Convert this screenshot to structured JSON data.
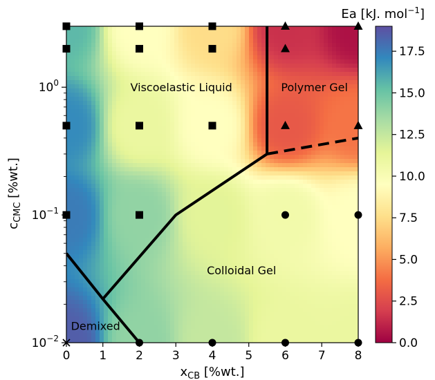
{
  "chart_data": {
    "type": "heatmap",
    "title": "",
    "xlabel": {
      "main": "x",
      "sub": "CB",
      "unit": " [%wt.]"
    },
    "ylabel": {
      "main": "c",
      "sub": "CMC",
      "unit": " [%wt.]"
    },
    "xlim": [
      0,
      8
    ],
    "ylim": [
      0.01,
      3
    ],
    "yscale": "log",
    "grid": false,
    "x_ticks": [
      {
        "value": 0,
        "label": "0"
      },
      {
        "value": 1,
        "label": "1"
      },
      {
        "value": 2,
        "label": "2"
      },
      {
        "value": 3,
        "label": "3"
      },
      {
        "value": 4,
        "label": "4"
      },
      {
        "value": 5,
        "label": "5"
      },
      {
        "value": 6,
        "label": "6"
      },
      {
        "value": 7,
        "label": "7"
      },
      {
        "value": 8,
        "label": "8"
      }
    ],
    "y_ticks": [
      {
        "value": 0.01,
        "base": "10",
        "exp": "−2"
      },
      {
        "value": 0.1,
        "base": "10",
        "exp": "−1"
      },
      {
        "value": 1,
        "base": "10",
        "exp": "0"
      }
    ],
    "colorbar": {
      "label": "Ea [kJ. mol",
      "label_exp": "−1",
      "label_end": "]",
      "range": [
        0,
        19
      ],
      "colormap": "Spectral",
      "ticks": [
        "0.0",
        "2.5",
        "5.0",
        "7.5",
        "10.0",
        "12.5",
        "15.0",
        "17.5"
      ],
      "tick_values": [
        0,
        2.5,
        5,
        7.5,
        10,
        12.5,
        15,
        17.5
      ],
      "colors": [
        "#9e0142",
        "#d53e4f",
        "#f46d43",
        "#fdae61",
        "#fee08b",
        "#ffffbf",
        "#e6f598",
        "#abdda4",
        "#66c2a5",
        "#3288bd",
        "#5e4fa2"
      ]
    },
    "heat_field": [
      {
        "x": 0,
        "y": 3,
        "ea": 15.5
      },
      {
        "x": 2,
        "y": 3,
        "ea": 9.5
      },
      {
        "x": 4,
        "y": 3,
        "ea": 7.5
      },
      {
        "x": 6,
        "y": 3,
        "ea": 1.5
      },
      {
        "x": 8,
        "y": 3,
        "ea": 0.5
      },
      {
        "x": 0,
        "y": 0.5,
        "ea": 17
      },
      {
        "x": 2,
        "y": 0.5,
        "ea": 11
      },
      {
        "x": 4,
        "y": 0.5,
        "ea": 9.5
      },
      {
        "x": 6,
        "y": 0.5,
        "ea": 3
      },
      {
        "x": 8,
        "y": 0.5,
        "ea": 4
      },
      {
        "x": 0,
        "y": 0.1,
        "ea": 17.5
      },
      {
        "x": 2,
        "y": 0.1,
        "ea": 14
      },
      {
        "x": 4,
        "y": 0.1,
        "ea": 11.5
      },
      {
        "x": 6,
        "y": 0.1,
        "ea": 10.5
      },
      {
        "x": 8,
        "y": 0.1,
        "ea": 9.5
      },
      {
        "x": 0,
        "y": 0.01,
        "ea": 18.5
      },
      {
        "x": 2,
        "y": 0.01,
        "ea": 14
      },
      {
        "x": 4,
        "y": 0.01,
        "ea": 12.5
      },
      {
        "x": 6,
        "y": 0.01,
        "ea": 11
      },
      {
        "x": 8,
        "y": 0.01,
        "ea": 11
      }
    ],
    "points": [
      {
        "x": 0,
        "y": 3,
        "marker": "square"
      },
      {
        "x": 0,
        "y": 2,
        "marker": "square"
      },
      {
        "x": 0,
        "y": 0.5,
        "marker": "square"
      },
      {
        "x": 0,
        "y": 0.1,
        "marker": "square"
      },
      {
        "x": 0,
        "y": 0.01,
        "marker": "cross"
      },
      {
        "x": 2,
        "y": 3,
        "marker": "square"
      },
      {
        "x": 2,
        "y": 2,
        "marker": "square"
      },
      {
        "x": 2,
        "y": 0.5,
        "marker": "square"
      },
      {
        "x": 2,
        "y": 0.1,
        "marker": "square"
      },
      {
        "x": 2,
        "y": 0.01,
        "marker": "circle"
      },
      {
        "x": 4,
        "y": 3,
        "marker": "square"
      },
      {
        "x": 4,
        "y": 2,
        "marker": "square"
      },
      {
        "x": 4,
        "y": 0.5,
        "marker": "square"
      },
      {
        "x": 4,
        "y": 0.01,
        "marker": "circle"
      },
      {
        "x": 6,
        "y": 3,
        "marker": "triangle"
      },
      {
        "x": 6,
        "y": 2,
        "marker": "triangle"
      },
      {
        "x": 6,
        "y": 0.5,
        "marker": "triangle"
      },
      {
        "x": 6,
        "y": 0.1,
        "marker": "circle"
      },
      {
        "x": 6,
        "y": 0.01,
        "marker": "circle"
      },
      {
        "x": 8,
        "y": 3,
        "marker": "triangle"
      },
      {
        "x": 8,
        "y": 0.5,
        "marker": "triangle"
      },
      {
        "x": 8,
        "y": 0.1,
        "marker": "circle"
      },
      {
        "x": 8,
        "y": 0.01,
        "marker": "circle"
      }
    ],
    "boundaries": [
      {
        "style": "solid",
        "points": [
          [
            0,
            0.05
          ],
          [
            1,
            0.022
          ],
          [
            2,
            0.01
          ]
        ]
      },
      {
        "style": "solid",
        "points": [
          [
            1,
            0.022
          ],
          [
            3,
            0.1
          ],
          [
            5.5,
            0.3
          ]
        ]
      },
      {
        "style": "solid",
        "points": [
          [
            5.5,
            3
          ],
          [
            5.5,
            0.3
          ]
        ]
      },
      {
        "style": "dashed",
        "points": [
          [
            5.5,
            0.3
          ],
          [
            8,
            0.4
          ]
        ]
      }
    ],
    "regions": [
      {
        "label": "Viscoelastic Liquid",
        "x": 3.15,
        "y": 1.0
      },
      {
        "label": "Polymer Gel",
        "x": 6.8,
        "y": 1.0
      },
      {
        "label": "Colloidal Gel",
        "x": 4.8,
        "y": 0.037
      },
      {
        "label": "Demixed",
        "x": 0.8,
        "y": 0.0136
      }
    ]
  }
}
